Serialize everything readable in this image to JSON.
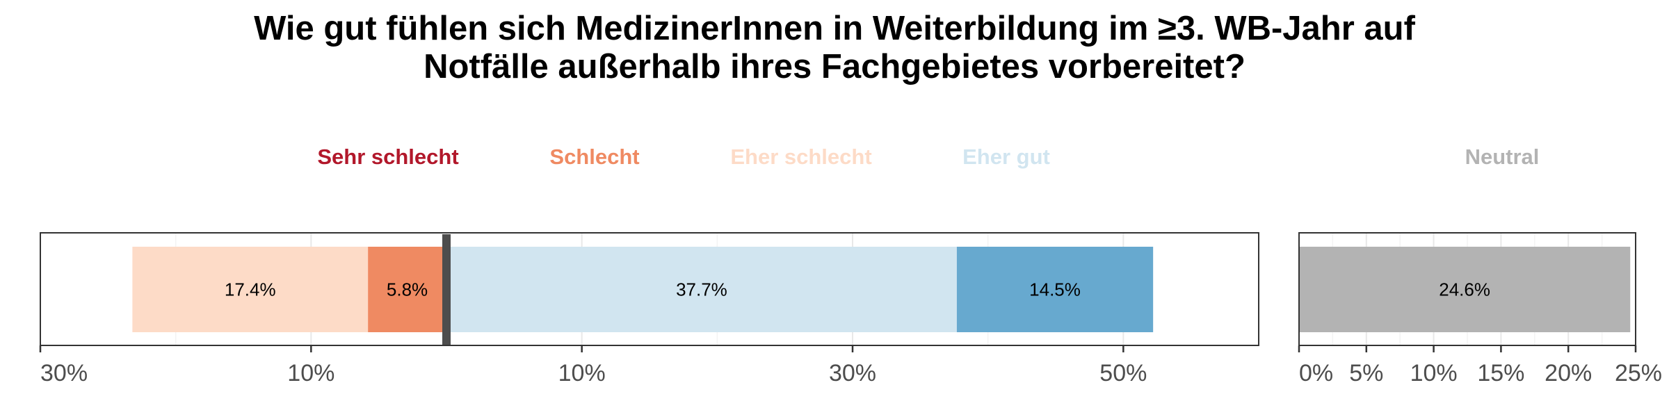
{
  "chart_data": {
    "type": "bar",
    "orientation": "horizontal",
    "title": "Wie gut fühlen sich MedizinerInnen in Weiterbildung im ≥3. WB-Jahr auf Notfälle außerhalb ihres Fachgebietes vorbereitet?",
    "title_lines": [
      "Wie gut fühlen sich MedizinerInnen in Weiterbildung im ≥3. WB-Jahr auf",
      "Notfälle außerhalb ihres Fachgebietes vorbereitet?"
    ],
    "legend": [
      {
        "name": "Sehr schlecht",
        "color": "#b2182b"
      },
      {
        "name": "Schlecht",
        "color": "#ef8a62"
      },
      {
        "name": "Eher schlecht",
        "color": "#fddbc7"
      },
      {
        "name": "Eher gut",
        "color": "#d1e5f0"
      },
      {
        "name": "Neutral",
        "color": "#b3b3b3"
      }
    ],
    "diverging": {
      "x_range": [
        -30,
        60
      ],
      "zero_line_color": "#4d4d4d",
      "ticks": [
        -30,
        -10,
        10,
        30,
        50
      ],
      "tick_labels": [
        "30%",
        "10%",
        "10%",
        "30%",
        "50%"
      ],
      "segments": [
        {
          "category": "Schlecht",
          "value": 5.8,
          "label": "5.8%",
          "side": "negative",
          "color": "#ef8a62"
        },
        {
          "category": "Eher schlecht",
          "value": 17.4,
          "label": "17.4%",
          "side": "negative",
          "color": "#fddbc7"
        },
        {
          "category": "Eher gut",
          "value": 37.7,
          "label": "37.7%",
          "side": "positive",
          "color": "#d1e5f0"
        },
        {
          "category": "",
          "value": 14.5,
          "label": "14.5%",
          "side": "positive",
          "color": "#67a9cf"
        }
      ]
    },
    "neutral": {
      "x_range": [
        0,
        25
      ],
      "ticks": [
        0,
        5,
        10,
        15,
        20,
        25
      ],
      "tick_labels": [
        "0%",
        "5%",
        "10%",
        "15%",
        "20%",
        "25%"
      ],
      "value": 24.6,
      "label": "24.6%",
      "color": "#b3b3b3"
    }
  }
}
